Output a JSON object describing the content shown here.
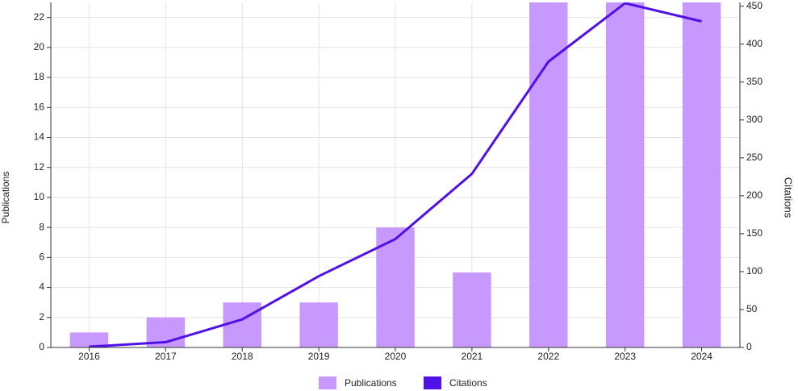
{
  "chart_data": {
    "type": "bar-line",
    "categories": [
      "2016",
      "2017",
      "2018",
      "2019",
      "2020",
      "2021",
      "2022",
      "2023",
      "2024"
    ],
    "series": [
      {
        "name": "Publications",
        "type": "bar",
        "color": "#c799ff",
        "values": [
          1,
          2,
          3,
          3,
          8,
          5,
          23,
          23,
          23
        ]
      },
      {
        "name": "Citations",
        "type": "line",
        "axis": "y2",
        "color": "#5010e8",
        "values": [
          1,
          7,
          37,
          94,
          143,
          229,
          377,
          454,
          430
        ]
      }
    ],
    "ylabel": "Publications",
    "y2label": "Citations",
    "ylim": [
      0,
      23
    ],
    "yticks": [
      0,
      2,
      4,
      6,
      8,
      10,
      12,
      14,
      16,
      18,
      20,
      22
    ],
    "y2lim": [
      0,
      455
    ],
    "y2ticks": [
      0,
      50,
      100,
      150,
      200,
      250,
      300,
      350,
      400,
      450
    ],
    "grid": true,
    "legend": "bottom"
  }
}
